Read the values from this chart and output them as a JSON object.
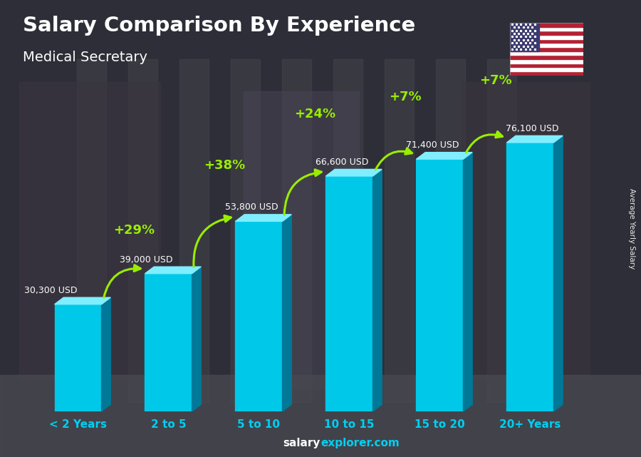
{
  "title": "Salary Comparison By Experience",
  "subtitle": "Medical Secretary",
  "categories": [
    "< 2 Years",
    "2 to 5",
    "5 to 10",
    "10 to 15",
    "15 to 20",
    "20+ Years"
  ],
  "values": [
    30300,
    39000,
    53800,
    66600,
    71400,
    76100
  ],
  "value_labels": [
    "30,300 USD",
    "39,000 USD",
    "53,800 USD",
    "66,600 USD",
    "71,400 USD",
    "76,100 USD"
  ],
  "pct_labels": [
    "+29%",
    "+38%",
    "+24%",
    "+7%",
    "+7%"
  ],
  "bar_face_color": "#00C8E8",
  "bar_top_color": "#80EEFF",
  "bar_side_color": "#007898",
  "pct_color": "#99EE00",
  "title_color": "#ffffff",
  "subtitle_color": "#ffffff",
  "value_label_color": "#ffffff",
  "xlabel_color": "#00CFEF",
  "footer_salary_color": "#ffffff",
  "footer_explorer_color": "#00CFEF",
  "footer_text": "salaryexplorer.com",
  "ylabel_text": "Average Yearly Salary",
  "ylim_max": 88000,
  "bar_width": 0.52,
  "bg_dark": "#2a2a35",
  "bg_mid": "#3a3a45"
}
